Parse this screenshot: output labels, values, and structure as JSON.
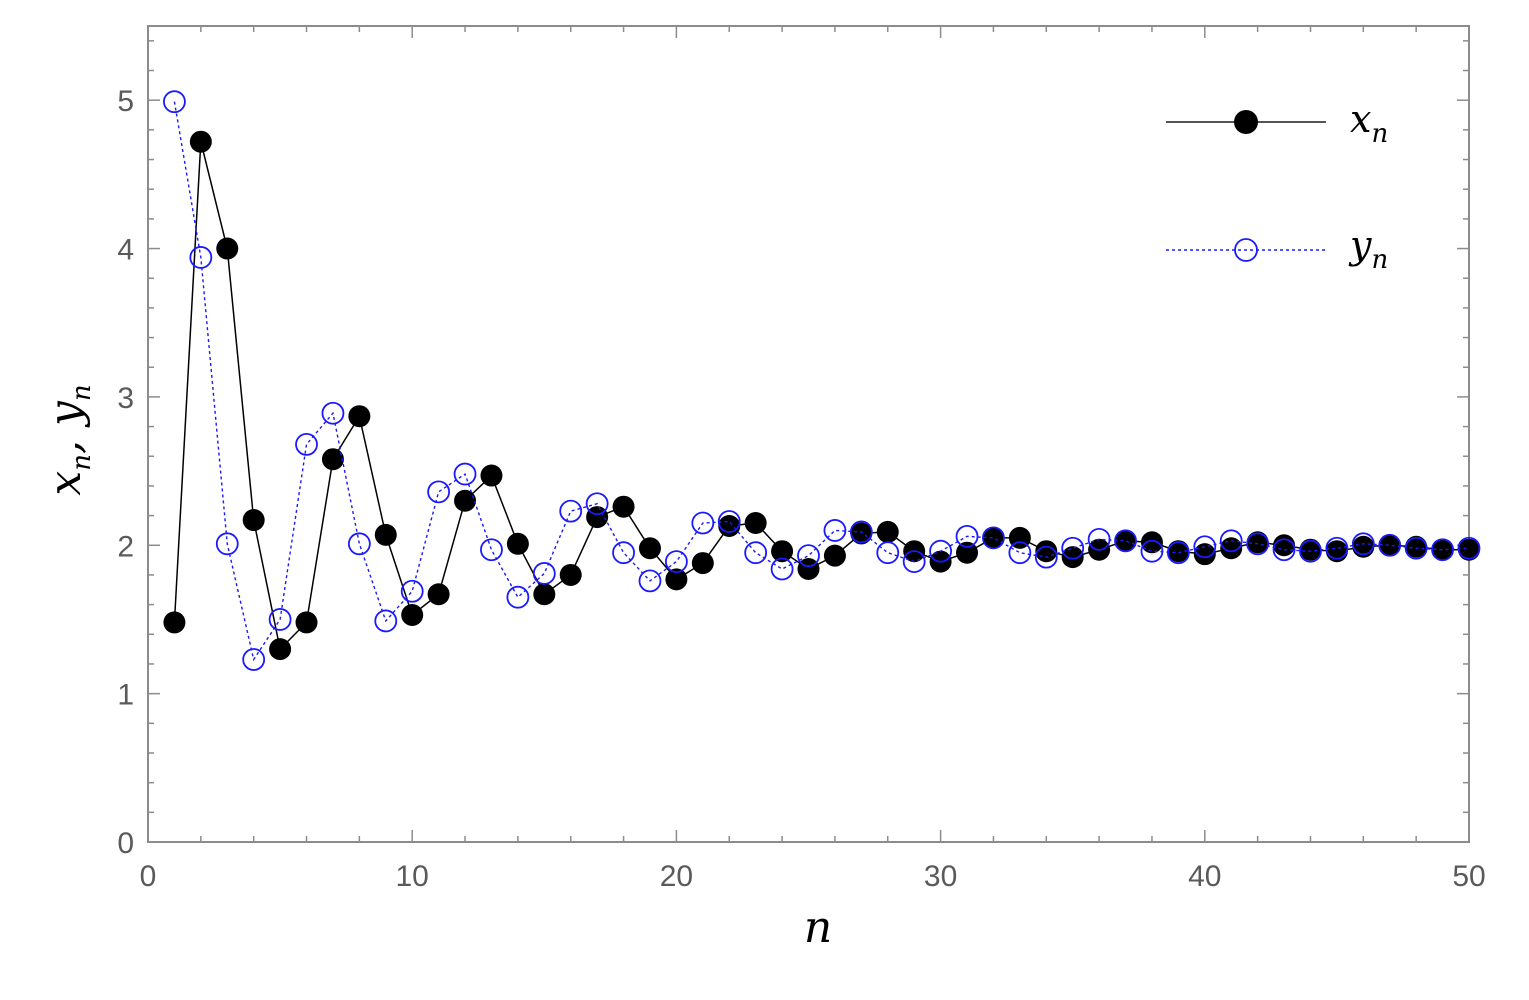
{
  "chart_data": {
    "type": "line",
    "xlabel_main": "n",
    "ylabel_main": "x",
    "ylabel_sub1": "n",
    "ylabel_sep": ", ",
    "ylabel_main2": "y",
    "ylabel_sub2": "n",
    "xlim": [
      0,
      50
    ],
    "ylim": [
      0,
      5.5
    ],
    "xticks": [
      0,
      10,
      20,
      30,
      40,
      50
    ],
    "yticks": [
      0,
      1,
      2,
      3,
      4,
      5
    ],
    "xtick_labels": [
      "0",
      "10",
      "20",
      "30",
      "40",
      "50"
    ],
    "ytick_labels": [
      "0",
      "1",
      "2",
      "3",
      "4",
      "5"
    ],
    "grid": false,
    "legend_position": "top-right",
    "colors": {
      "x_series": "#000000",
      "y_series": "#1a1aff",
      "axis": "#8c8c8c"
    },
    "x": [
      1,
      2,
      3,
      4,
      5,
      6,
      7,
      8,
      9,
      10,
      11,
      12,
      13,
      14,
      15,
      16,
      17,
      18,
      19,
      20,
      21,
      22,
      23,
      24,
      25,
      26,
      27,
      28,
      29,
      30,
      31,
      32,
      33,
      34,
      35,
      36,
      37,
      38,
      39,
      40,
      41,
      42,
      43,
      44,
      45,
      46,
      47,
      48,
      49,
      50
    ],
    "series": [
      {
        "name": "x",
        "sub": "n",
        "style": "solid-filled",
        "values": [
          1.48,
          4.72,
          4.0,
          2.17,
          1.3,
          1.48,
          2.58,
          2.87,
          2.07,
          1.53,
          1.67,
          2.3,
          2.47,
          2.01,
          1.67,
          1.8,
          2.19,
          2.26,
          1.98,
          1.77,
          1.88,
          2.13,
          2.15,
          1.96,
          1.84,
          1.93,
          2.08,
          2.09,
          1.96,
          1.89,
          1.95,
          2.05,
          2.05,
          1.96,
          1.92,
          1.97,
          2.03,
          2.02,
          1.96,
          1.94,
          1.98,
          2.02,
          2.0,
          1.97,
          1.96,
          1.99,
          2.0,
          1.99,
          1.97,
          1.97
        ]
      },
      {
        "name": "y",
        "sub": "n",
        "style": "dotted-open",
        "values": [
          4.99,
          3.94,
          2.01,
          1.23,
          1.5,
          2.68,
          2.89,
          2.01,
          1.49,
          1.69,
          2.36,
          2.48,
          1.97,
          1.65,
          1.81,
          2.23,
          2.28,
          1.95,
          1.76,
          1.89,
          2.15,
          2.16,
          1.95,
          1.84,
          1.93,
          2.1,
          2.09,
          1.95,
          1.89,
          1.96,
          2.06,
          2.05,
          1.95,
          1.92,
          1.98,
          2.04,
          2.03,
          1.96,
          1.95,
          1.99,
          2.03,
          2.01,
          1.97,
          1.96,
          1.98,
          2.01,
          2.0,
          1.98,
          1.97,
          1.98
        ]
      }
    ]
  }
}
